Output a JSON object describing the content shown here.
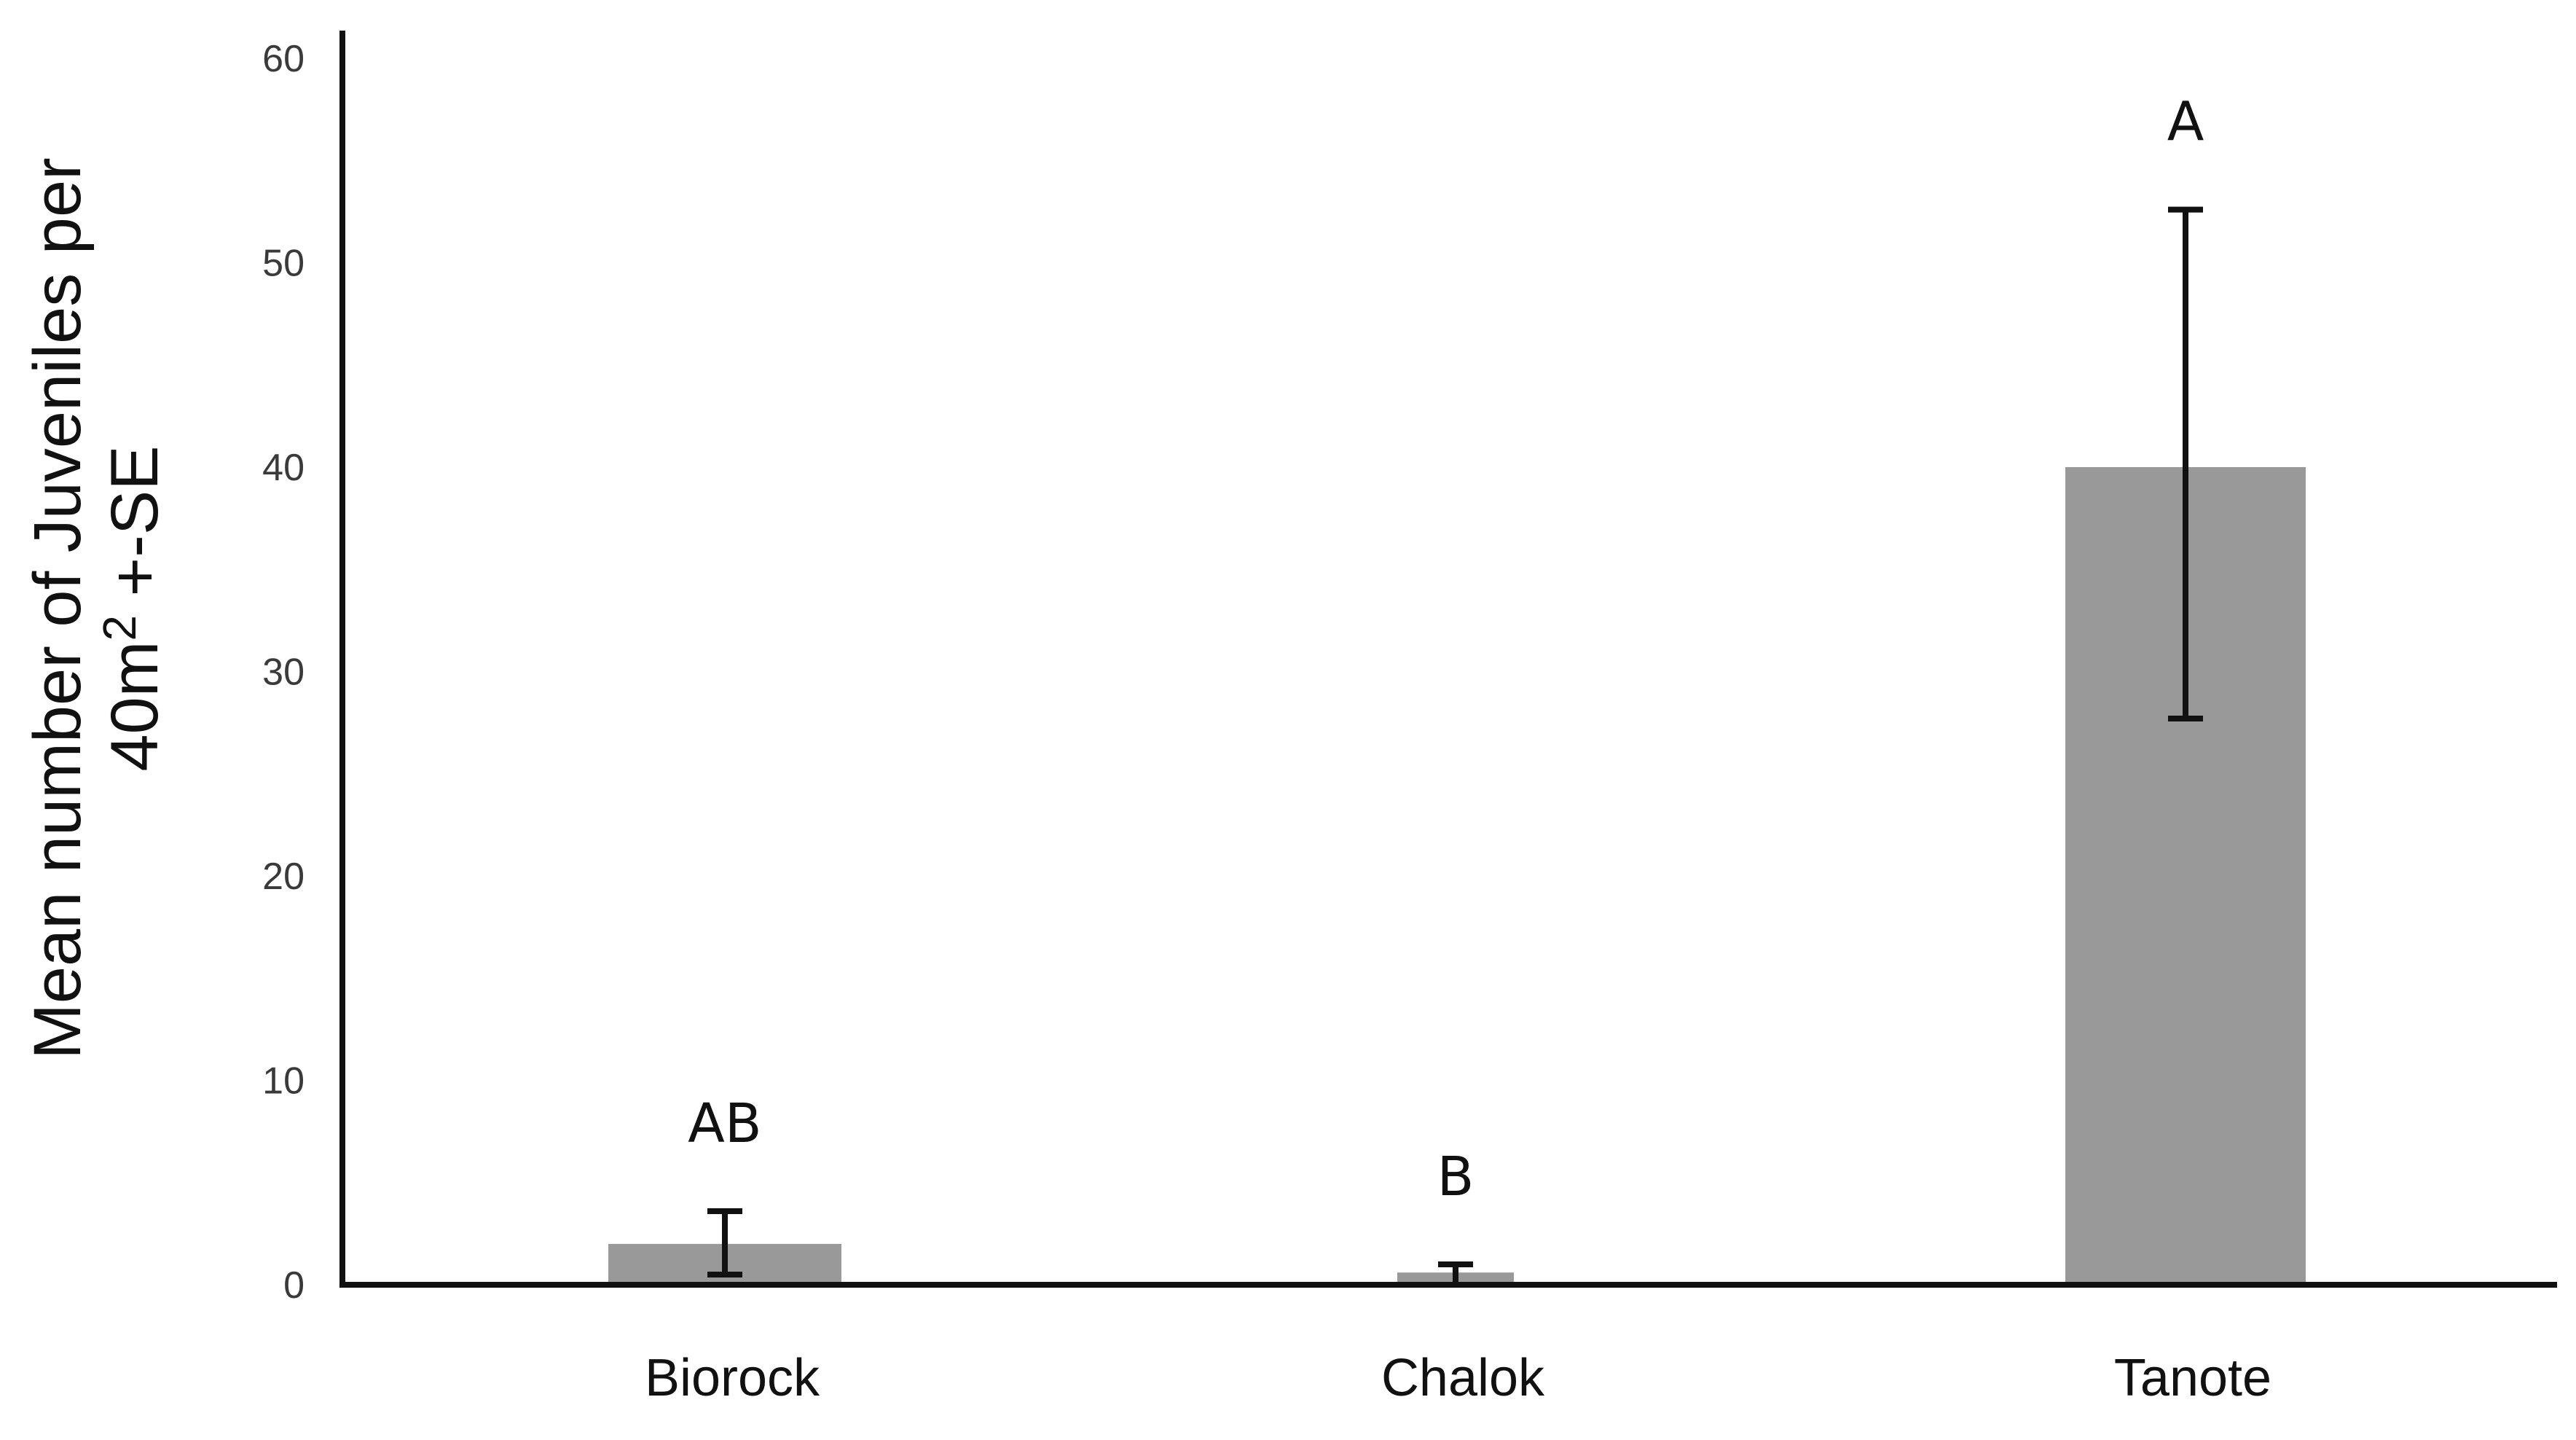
{
  "chart_data": {
    "type": "bar",
    "categories": [
      "Biorock",
      "Chalok",
      "Tanote"
    ],
    "values": [
      2.0,
      0.6,
      40.0
    ],
    "error_low": [
      0.5,
      0.0,
      27.7
    ],
    "error_high": [
      3.6,
      1.0,
      52.6
    ],
    "significance_letters": [
      "AB",
      "B",
      "A"
    ],
    "ylabel_line1": "Mean number of Juveniles per",
    "ylabel_line2_base": "40m",
    "ylabel_line2_sup": "2",
    "ylabel_line2_rest": " +-SE",
    "ylim": [
      0,
      60
    ],
    "yticks": [
      0,
      10,
      20,
      30,
      40,
      50,
      60
    ],
    "grid": false,
    "bar_color": "#999999",
    "axis_color": "#111111"
  }
}
